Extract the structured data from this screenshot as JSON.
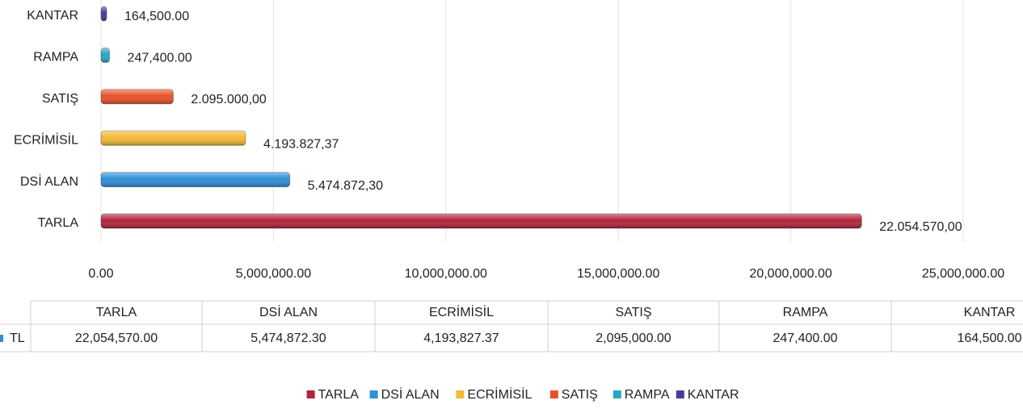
{
  "chart_data": {
    "type": "bar",
    "orientation": "horizontal",
    "categories": [
      "TARLA",
      "DSİ ALAN",
      "ECRİMİSİL",
      "SATIŞ",
      "RAMPA",
      "KANTAR"
    ],
    "values": [
      22054570.0,
      5474872.3,
      4193827.37,
      2095000.0,
      247400.0,
      164500.0
    ],
    "value_labels": [
      "22.054.570,00",
      "5.474.872,30",
      "4.193.827,37",
      "2.095.000,00",
      "247,400.00",
      "164,500.00"
    ],
    "colors": [
      "#b3243a",
      "#2f8fd8",
      "#f2b934",
      "#e8522b",
      "#2ba4c6",
      "#4a3b9b"
    ],
    "xlim": [
      0,
      25000000
    ],
    "xticks": [
      {
        "value": 0,
        "label": "0.00"
      },
      {
        "value": 5000000,
        "label": "5,000,000.00"
      },
      {
        "value": 10000000,
        "label": "10,000,000.00"
      },
      {
        "value": 15000000,
        "label": "15,000,000.00"
      },
      {
        "value": 20000000,
        "label": "20,000,000.00"
      },
      {
        "value": 25000000,
        "label": "25,000,000.00"
      }
    ],
    "grid": true,
    "data_table": {
      "row_label": "TL",
      "cells": [
        "22,054,570.00",
        "5,474,872.30",
        "4,193,827.37",
        "2,095,000.00",
        "247,400.00",
        "164,500.00"
      ]
    },
    "legend": "bottom"
  }
}
